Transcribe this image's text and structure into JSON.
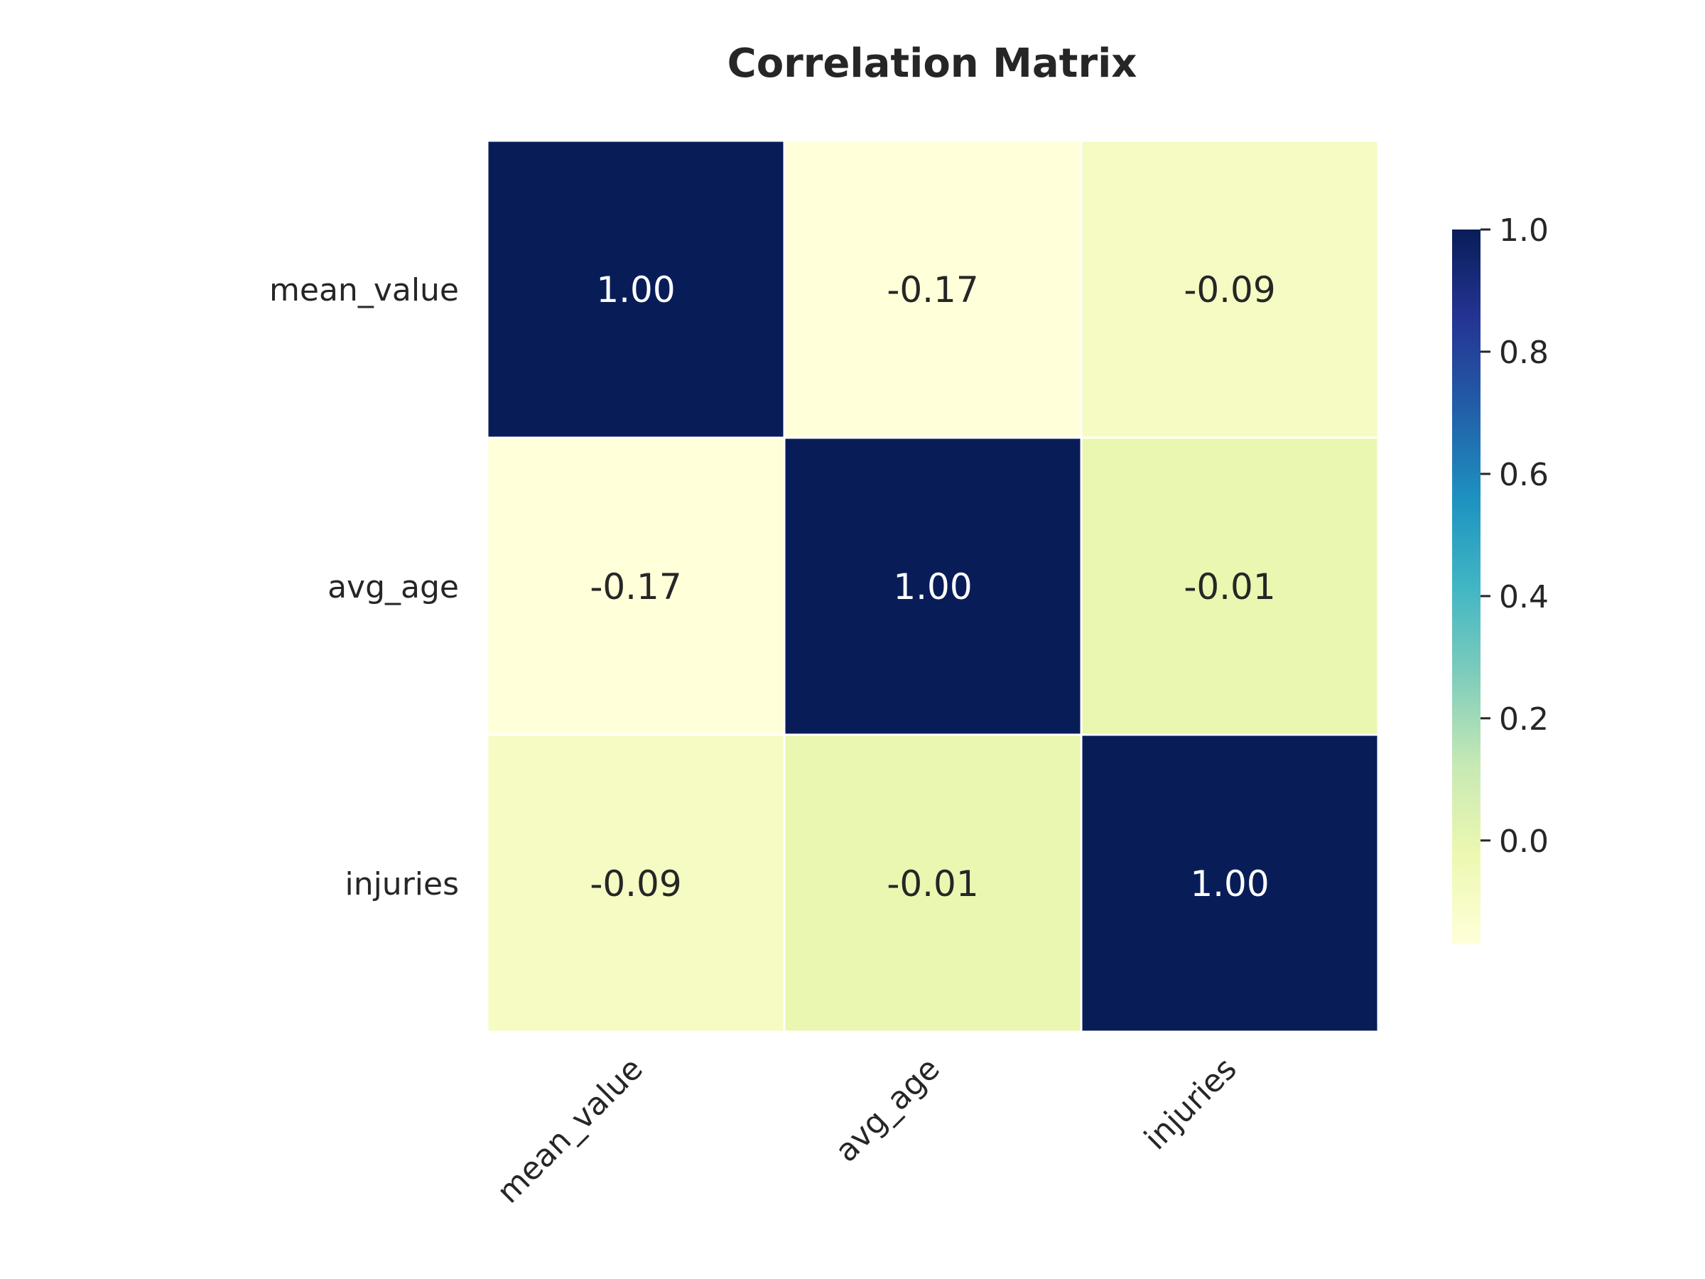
{
  "chart_data": {
    "type": "heatmap",
    "title": "Correlation Matrix",
    "xlabel": "",
    "ylabel": "",
    "x_labels": [
      "mean_value",
      "avg_age",
      "injuries"
    ],
    "y_labels": [
      "mean_value",
      "avg_age",
      "injuries"
    ],
    "values": [
      [
        1.0,
        -0.17,
        -0.09
      ],
      [
        -0.17,
        1.0,
        -0.01
      ],
      [
        -0.09,
        -0.01,
        1.0
      ]
    ],
    "value_labels": [
      [
        "1.00",
        "-0.17",
        "-0.09"
      ],
      [
        "-0.17",
        "1.00",
        "-0.01"
      ],
      [
        "-0.09",
        "-0.01",
        "1.00"
      ]
    ],
    "colormap": "YlGnBu",
    "colorbar": {
      "vmin": -0.17,
      "vmax": 1.0,
      "ticks": [
        0.0,
        0.2,
        0.4,
        0.6,
        0.8,
        1.0
      ],
      "tick_labels": [
        "0.0",
        "0.2",
        "0.4",
        "0.6",
        "0.8",
        "1.0"
      ]
    },
    "grid": false,
    "x_tick_rotation": 45
  }
}
